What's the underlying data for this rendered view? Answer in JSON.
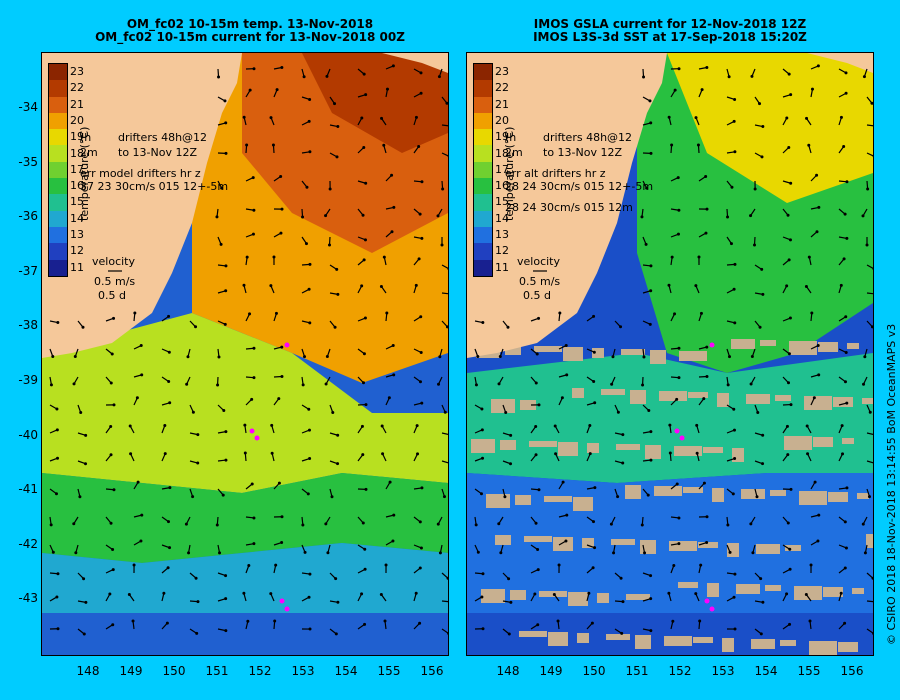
{
  "left_panel": {
    "title_line1": "OM_fc02 10-15m temp. 13-Nov-2018",
    "title_line2": "OM_fc02 10-15m current for 13-Nov-2018 00Z",
    "legend_drifters": "drifters 48h@12",
    "legend_to": "to 13-Nov 12Z",
    "legend_h": "(h",
    "legend_m": "2m",
    "legend_err1": "err model drifters hr z",
    "legend_err2": "37 23 30cm/s 015 12+-5m",
    "velocity_label": "velocity",
    "velocity_scale": "0.5 m/s",
    "velocity_time": "0.5 d"
  },
  "right_panel": {
    "title_line1": "IMOS GSLA current for 12-Nov-2018 12Z",
    "title_line2": "IMOS L3S-3d SST at 17-Sep-2018 15:20Z",
    "legend_drifters": "drifters 48h@12",
    "legend_to": "to 13-Nov 12Z",
    "legend_h": "(h",
    "legend_m": "2m",
    "legend_err1": "err alt drifters hr z",
    "legend_err2": "28 24 30cm/s 015 12+-5m",
    "legend_err3": "28 24 30cm/s 015 12m",
    "velocity_label": "velocity",
    "velocity_scale": "0.5 m/s",
    "velocity_time": "0.5 d"
  },
  "colorbar": {
    "title": "temperature (°C)",
    "labels": [
      "23",
      "22",
      "21",
      "20",
      "19",
      "18",
      "17",
      "16",
      "15",
      "14",
      "13",
      "12",
      "11"
    ],
    "colors": [
      "#8b2500",
      "#b33a00",
      "#d95f0e",
      "#f0a000",
      "#e8d800",
      "#b8e020",
      "#70d030",
      "#28c040",
      "#20c090",
      "#20a8d0",
      "#2070e0",
      "#2040c0",
      "#182090"
    ]
  },
  "y_axis": [
    "-34",
    "-35",
    "-36",
    "-37",
    "-38",
    "-39",
    "-40",
    "-41",
    "-42",
    "-43"
  ],
  "x_axis": [
    "148",
    "149",
    "150",
    "151",
    "152",
    "153",
    "154",
    "155",
    "156"
  ],
  "credit": "© CSIRO 2018  18-Nov-2018 13:14:55 BoM OceanMAPS v3",
  "colors": {
    "background": "#00ccff",
    "land": "#f5c89a",
    "cloud": "#c8b090",
    "drifter": "#ff00ff"
  }
}
